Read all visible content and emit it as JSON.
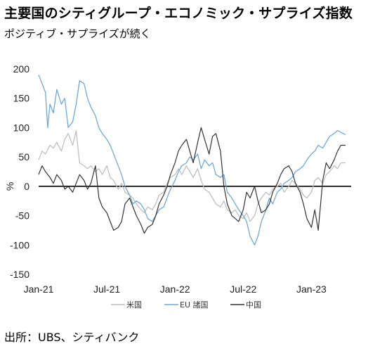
{
  "header": {
    "title": "主要国のシティグループ・エコノミック・サプライズ指数",
    "subtitle": "ポジティブ・サプライズが続く"
  },
  "footer": {
    "source": "出所：UBS、シティバンク"
  },
  "chart_data": {
    "type": "line",
    "title": "主要国のシティグループ・エコノミック・サプライズ指数",
    "subtitle": "ポジティブ・サプライズが続く",
    "xlabel": "",
    "ylabel": "%",
    "ylim": [
      -150,
      200
    ],
    "yticks": [
      200,
      150,
      100,
      50,
      0,
      -50,
      -100,
      -150
    ],
    "xticks": [
      {
        "label": "Jan-21",
        "t": 0
      },
      {
        "label": "Jul-21",
        "t": 6
      },
      {
        "label": "Jan-22",
        "t": 12
      },
      {
        "label": "Jul-22",
        "t": 18
      },
      {
        "label": "Jan-23",
        "t": 24
      }
    ],
    "x_units": "months since Jan-21",
    "xlim": [
      0,
      27.5
    ],
    "grid": false,
    "legend_position": "bottom",
    "series": [
      {
        "name": "米国",
        "color": "#bfbfbf",
        "points": [
          [
            0,
            45
          ],
          [
            0.3,
            60
          ],
          [
            0.6,
            55
          ],
          [
            1,
            70
          ],
          [
            1.3,
            65
          ],
          [
            1.6,
            75
          ],
          [
            2,
            60
          ],
          [
            2.3,
            80
          ],
          [
            2.6,
            90
          ],
          [
            3,
            70
          ],
          [
            3.3,
            95
          ],
          [
            3.6,
            40
          ],
          [
            4,
            35
          ],
          [
            4.3,
            30
          ],
          [
            4.6,
            35
          ],
          [
            5,
            25
          ],
          [
            5.3,
            30
          ],
          [
            5.6,
            20
          ],
          [
            6,
            35
          ],
          [
            6.3,
            15
          ],
          [
            6.6,
            10
          ],
          [
            7,
            -5
          ],
          [
            7.3,
            5
          ],
          [
            7.6,
            -10
          ],
          [
            8,
            -15
          ],
          [
            8.3,
            -20
          ],
          [
            8.6,
            -30
          ],
          [
            9,
            -40
          ],
          [
            9.3,
            -45
          ],
          [
            9.6,
            -35
          ],
          [
            10,
            -40
          ],
          [
            10.3,
            -30
          ],
          [
            10.6,
            -15
          ],
          [
            11,
            -10
          ],
          [
            11.3,
            5
          ],
          [
            11.6,
            15
          ],
          [
            12,
            20
          ],
          [
            12.3,
            30
          ],
          [
            12.6,
            20
          ],
          [
            13,
            35
          ],
          [
            13.3,
            25
          ],
          [
            13.6,
            15
          ],
          [
            14,
            30
          ],
          [
            14.3,
            10
          ],
          [
            14.6,
            -5
          ],
          [
            15,
            -10
          ],
          [
            15.3,
            -20
          ],
          [
            15.6,
            -30
          ],
          [
            16,
            -35
          ],
          [
            16.3,
            -25
          ],
          [
            16.6,
            -40
          ],
          [
            17,
            -45
          ],
          [
            17.3,
            -40
          ],
          [
            17.6,
            -50
          ],
          [
            18,
            -55
          ],
          [
            18.3,
            -45
          ],
          [
            18.6,
            -60
          ],
          [
            19,
            -50
          ],
          [
            19.3,
            -30
          ],
          [
            19.6,
            -20
          ],
          [
            20,
            -10
          ],
          [
            20.3,
            -15
          ],
          [
            20.6,
            -5
          ],
          [
            21,
            0
          ],
          [
            21.3,
            5
          ],
          [
            21.6,
            -10
          ],
          [
            22,
            0
          ],
          [
            22.3,
            10
          ],
          [
            22.6,
            5
          ],
          [
            23,
            -5
          ],
          [
            23.3,
            -15
          ],
          [
            23.6,
            -20
          ],
          [
            24,
            -10
          ],
          [
            24.3,
            10
          ],
          [
            24.6,
            15
          ],
          [
            25,
            5
          ],
          [
            25.3,
            20
          ],
          [
            25.6,
            25
          ],
          [
            26,
            35
          ],
          [
            26.3,
            30
          ],
          [
            26.6,
            40
          ],
          [
            27,
            40
          ]
        ]
      },
      {
        "name": "EU 諸国",
        "color": "#6fa8d6",
        "points": [
          [
            0,
            190
          ],
          [
            0.3,
            175
          ],
          [
            0.6,
            160
          ],
          [
            0.8,
            100
          ],
          [
            1,
            140
          ],
          [
            1.3,
            125
          ],
          [
            1.6,
            165
          ],
          [
            2,
            140
          ],
          [
            2.3,
            150
          ],
          [
            2.6,
            100
          ],
          [
            3,
            110
          ],
          [
            3.3,
            140
          ],
          [
            3.6,
            180
          ],
          [
            4,
            175
          ],
          [
            4.3,
            150
          ],
          [
            4.6,
            135
          ],
          [
            5,
            120
          ],
          [
            5.3,
            100
          ],
          [
            5.6,
            90
          ],
          [
            6,
            80
          ],
          [
            6.3,
            70
          ],
          [
            6.6,
            55
          ],
          [
            7,
            35
          ],
          [
            7.3,
            20
          ],
          [
            7.6,
            0
          ],
          [
            8,
            -15
          ],
          [
            8.3,
            -30
          ],
          [
            8.6,
            -25
          ],
          [
            9,
            -30
          ],
          [
            9.3,
            -40
          ],
          [
            9.6,
            -55
          ],
          [
            10,
            -60
          ],
          [
            10.3,
            -50
          ],
          [
            10.6,
            -40
          ],
          [
            11,
            -35
          ],
          [
            11.3,
            -20
          ],
          [
            11.6,
            -5
          ],
          [
            12,
            10
          ],
          [
            12.3,
            25
          ],
          [
            12.6,
            35
          ],
          [
            13,
            40
          ],
          [
            13.3,
            50
          ],
          [
            13.6,
            45
          ],
          [
            14,
            55
          ],
          [
            14.3,
            30
          ],
          [
            14.6,
            45
          ],
          [
            15,
            35
          ],
          [
            15.3,
            40
          ],
          [
            15.6,
            20
          ],
          [
            16,
            15
          ],
          [
            16.3,
            20
          ],
          [
            16.6,
            -10
          ],
          [
            17,
            -20
          ],
          [
            17.3,
            -30
          ],
          [
            17.6,
            -40
          ],
          [
            18,
            -50
          ],
          [
            18.3,
            -60
          ],
          [
            18.6,
            -85
          ],
          [
            19,
            -100
          ],
          [
            19.3,
            -85
          ],
          [
            19.6,
            -60
          ],
          [
            20,
            -40
          ],
          [
            20.3,
            -20
          ],
          [
            20.6,
            -30
          ],
          [
            21,
            -10
          ],
          [
            21.3,
            -5
          ],
          [
            21.6,
            5
          ],
          [
            22,
            10
          ],
          [
            22.3,
            15
          ],
          [
            22.6,
            25
          ],
          [
            23,
            30
          ],
          [
            23.3,
            35
          ],
          [
            23.6,
            45
          ],
          [
            24,
            55
          ],
          [
            24.3,
            60
          ],
          [
            24.6,
            70
          ],
          [
            25,
            65
          ],
          [
            25.3,
            75
          ],
          [
            25.6,
            85
          ],
          [
            26,
            90
          ],
          [
            26.3,
            95
          ],
          [
            26.6,
            92
          ],
          [
            27,
            88
          ]
        ]
      },
      {
        "name": "中国",
        "color": "#333333",
        "points": [
          [
            0,
            20
          ],
          [
            0.3,
            35
          ],
          [
            0.6,
            25
          ],
          [
            1,
            15
          ],
          [
            1.3,
            5
          ],
          [
            1.6,
            20
          ],
          [
            2,
            10
          ],
          [
            2.3,
            -5
          ],
          [
            2.6,
            0
          ],
          [
            3,
            -10
          ],
          [
            3.3,
            5
          ],
          [
            3.6,
            20
          ],
          [
            4,
            10
          ],
          [
            4.3,
            -5
          ],
          [
            4.6,
            5
          ],
          [
            5,
            35
          ],
          [
            5.3,
            -20
          ],
          [
            5.6,
            -35
          ],
          [
            6,
            -45
          ],
          [
            6.3,
            -60
          ],
          [
            6.6,
            -75
          ],
          [
            7,
            -70
          ],
          [
            7.3,
            -60
          ],
          [
            7.6,
            -30
          ],
          [
            8,
            -20
          ],
          [
            8.3,
            -35
          ],
          [
            8.6,
            -50
          ],
          [
            9,
            -65
          ],
          [
            9.3,
            -80
          ],
          [
            9.6,
            -70
          ],
          [
            10,
            -65
          ],
          [
            10.3,
            -50
          ],
          [
            10.6,
            -30
          ],
          [
            11,
            -15
          ],
          [
            11.3,
            0
          ],
          [
            11.6,
            20
          ],
          [
            12,
            40
          ],
          [
            12.3,
            60
          ],
          [
            12.6,
            70
          ],
          [
            13,
            80
          ],
          [
            13.3,
            60
          ],
          [
            13.6,
            40
          ],
          [
            14,
            75
          ],
          [
            14.3,
            100
          ],
          [
            14.6,
            80
          ],
          [
            15,
            55
          ],
          [
            15.3,
            85
          ],
          [
            15.6,
            90
          ],
          [
            16,
            60
          ],
          [
            16.3,
            0
          ],
          [
            16.6,
            -30
          ],
          [
            17,
            -50
          ],
          [
            17.3,
            -55
          ],
          [
            17.6,
            -60
          ],
          [
            18,
            -40
          ],
          [
            18.3,
            -10
          ],
          [
            18.6,
            -20
          ],
          [
            19,
            0
          ],
          [
            19.3,
            -25
          ],
          [
            19.6,
            -45
          ],
          [
            20,
            -40
          ],
          [
            20.3,
            -30
          ],
          [
            20.6,
            -10
          ],
          [
            21,
            5
          ],
          [
            21.3,
            20
          ],
          [
            21.6,
            30
          ],
          [
            22,
            35
          ],
          [
            22.3,
            25
          ],
          [
            22.6,
            5
          ],
          [
            23,
            -10
          ],
          [
            23.3,
            -30
          ],
          [
            23.6,
            -55
          ],
          [
            24,
            -70
          ],
          [
            24.3,
            -40
          ],
          [
            24.6,
            -75
          ],
          [
            25,
            10
          ],
          [
            25.3,
            40
          ],
          [
            25.6,
            30
          ],
          [
            26,
            45
          ],
          [
            26.3,
            60
          ],
          [
            26.6,
            70
          ],
          [
            27,
            70
          ]
        ]
      }
    ]
  }
}
